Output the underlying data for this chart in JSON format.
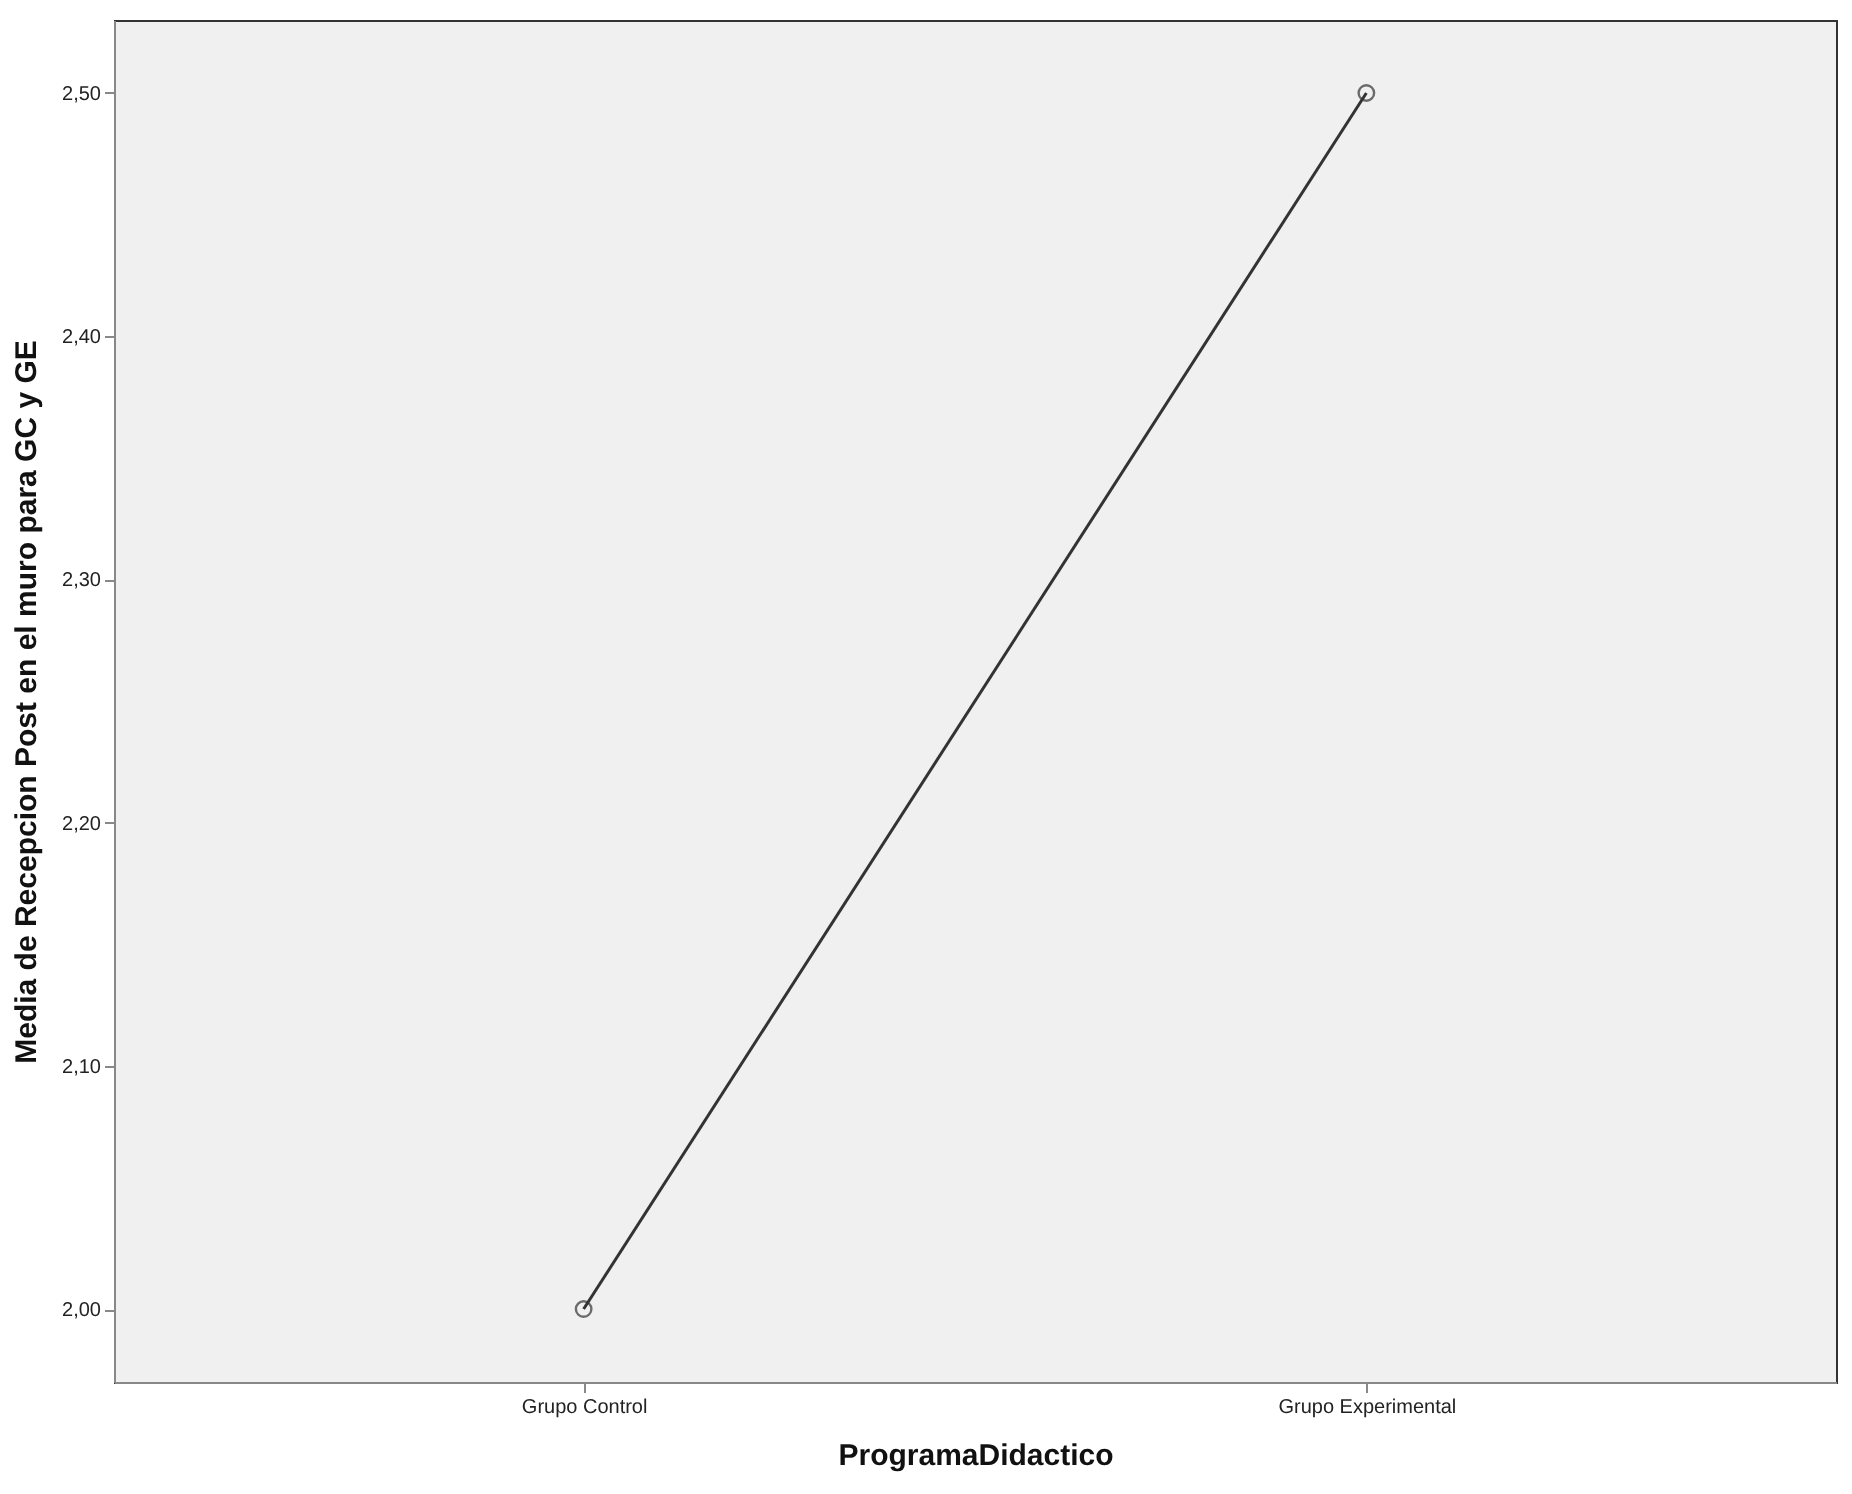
{
  "chart_data": {
    "type": "line",
    "xlabel": "ProgramaDidactico",
    "ylabel": "Media de Recepcion Post en el muro para GC y GE",
    "categories": [
      "Grupo Control",
      "Grupo Experimental"
    ],
    "series": [
      {
        "color": "#333333",
        "values": [
          2.0,
          2.5
        ]
      }
    ],
    "marker": "circle",
    "line_style": "solid",
    "ylim": [
      1.97,
      2.53
    ],
    "yticks": [
      {
        "value": 2.0,
        "label": "2,00"
      },
      {
        "value": 2.1,
        "label": "2,10"
      },
      {
        "value": 2.2,
        "label": "2,20"
      },
      {
        "value": 2.3,
        "label": "2,30"
      },
      {
        "value": 2.4,
        "label": "2,40"
      },
      {
        "value": 2.5,
        "label": "2,50"
      }
    ],
    "grid": false
  }
}
